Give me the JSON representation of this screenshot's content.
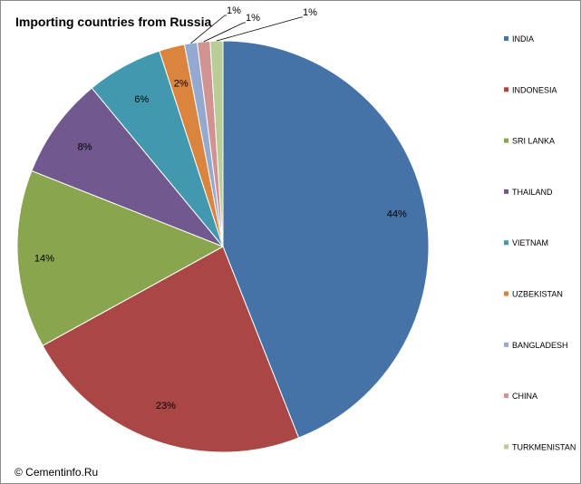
{
  "chart_data": {
    "type": "pie",
    "title": "Importing countries from Russia",
    "categories": [
      "INDIA",
      "INDONESIA",
      "SRI LANKA",
      "THAILAND",
      "VIETNAM",
      "UZBEKISTAN",
      "BANGLADESH",
      "CHINA",
      "TURKMENISTAN"
    ],
    "values": [
      44,
      23,
      14,
      8,
      6,
      2,
      1,
      1,
      1
    ],
    "labels": [
      "44%",
      "23%",
      "14%",
      "8%",
      "6%",
      "2%",
      "1%",
      "1%",
      "1%"
    ],
    "colors": [
      "#4572A7",
      "#AA4643",
      "#89A54E",
      "#71588F",
      "#4198AF",
      "#DB843D",
      "#93A9CF",
      "#D19392",
      "#B9CD96"
    ],
    "legend_position": "right"
  },
  "footer": {
    "copyright": "© Cementinfo.Ru"
  }
}
